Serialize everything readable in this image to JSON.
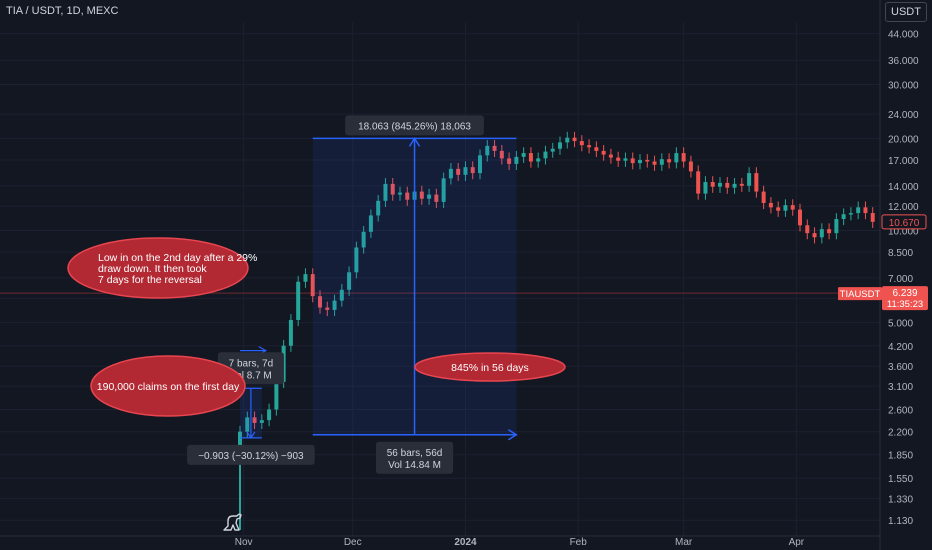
{
  "header": {
    "title": "TIA / USDT, 1D, MEXC",
    "currency_button": "USDT"
  },
  "colors": {
    "background": "#131722",
    "up": "#26a69a",
    "down": "#ef5350",
    "measure": "#2962ff",
    "annotation_fill": "#b22833",
    "annotation_border": "#e8464f",
    "price_line": "#6e2a30"
  },
  "chart_data": {
    "type": "candlestick",
    "y_scale": "log",
    "y_ticks": [
      "44.000",
      "36.000",
      "30.000",
      "24.000",
      "20.000",
      "17.000",
      "14.000",
      "12.000",
      "10.000",
      "8.500",
      "7.000",
      "6.000",
      "5.000",
      "4.200",
      "3.600",
      "3.100",
      "2.600",
      "2.200",
      "1.850",
      "1.550",
      "1.330",
      "1.130"
    ],
    "x_ticks": [
      {
        "label": "Nov",
        "bold": false
      },
      {
        "label": "Dec",
        "bold": false
      },
      {
        "label": "2024",
        "bold": true
      },
      {
        "label": "Feb",
        "bold": false
      },
      {
        "label": "Mar",
        "bold": false
      },
      {
        "label": "Apr",
        "bold": false
      }
    ],
    "x_range": [
      "2023-10-31",
      "2024-04-24"
    ],
    "close_series": [
      [
        "2023-10-31",
        2.2
      ],
      [
        "2023-11-02",
        2.45
      ],
      [
        "2023-11-04",
        2.35
      ],
      [
        "2023-11-06",
        2.4
      ],
      [
        "2023-11-08",
        2.6
      ],
      [
        "2023-11-10",
        3.2
      ],
      [
        "2023-11-12",
        4.2
      ],
      [
        "2023-11-14",
        5.1
      ],
      [
        "2023-11-16",
        6.8
      ],
      [
        "2023-11-18",
        7.2
      ],
      [
        "2023-11-20",
        6.1
      ],
      [
        "2023-11-22",
        5.6
      ],
      [
        "2023-11-24",
        5.5
      ],
      [
        "2023-11-26",
        5.9
      ],
      [
        "2023-11-28",
        6.4
      ],
      [
        "2023-11-30",
        7.3
      ],
      [
        "2023-12-02",
        8.8
      ],
      [
        "2023-12-04",
        9.9
      ],
      [
        "2023-12-06",
        11.2
      ],
      [
        "2023-12-08",
        12.5
      ],
      [
        "2023-12-10",
        14.2
      ],
      [
        "2023-12-12",
        13.1
      ],
      [
        "2023-12-14",
        13.3
      ],
      [
        "2023-12-16",
        12.6
      ],
      [
        "2023-12-18",
        13.4
      ],
      [
        "2023-12-20",
        12.7
      ],
      [
        "2023-12-22",
        13.1
      ],
      [
        "2023-12-24",
        12.4
      ],
      [
        "2023-12-26",
        14.8
      ],
      [
        "2023-12-28",
        15.9
      ],
      [
        "2023-12-30",
        15.2
      ],
      [
        "2024-01-01",
        16.1
      ],
      [
        "2024-01-03",
        15.4
      ],
      [
        "2024-01-05",
        17.6
      ],
      [
        "2024-01-07",
        18.9
      ],
      [
        "2024-01-09",
        18.2
      ],
      [
        "2024-01-11",
        17.2
      ],
      [
        "2024-01-13",
        16.5
      ],
      [
        "2024-01-15",
        17.4
      ],
      [
        "2024-01-17",
        17.9
      ],
      [
        "2024-01-19",
        16.8
      ],
      [
        "2024-01-21",
        17.2
      ],
      [
        "2024-01-23",
        18.1
      ],
      [
        "2024-01-25",
        18.5
      ],
      [
        "2024-01-27",
        19.4
      ],
      [
        "2024-01-29",
        20.1
      ],
      [
        "2024-01-31",
        19.6
      ],
      [
        "2024-02-02",
        19.0
      ],
      [
        "2024-02-04",
        18.7
      ],
      [
        "2024-02-06",
        18.2
      ],
      [
        "2024-02-08",
        17.7
      ],
      [
        "2024-02-10",
        17.3
      ],
      [
        "2024-02-12",
        16.9
      ],
      [
        "2024-02-14",
        17.2
      ],
      [
        "2024-02-16",
        16.6
      ],
      [
        "2024-02-18",
        17.0
      ],
      [
        "2024-02-20",
        16.8
      ],
      [
        "2024-02-22",
        16.4
      ],
      [
        "2024-02-24",
        17.1
      ],
      [
        "2024-02-26",
        16.7
      ],
      [
        "2024-02-28",
        17.9
      ],
      [
        "2024-03-01",
        16.8
      ],
      [
        "2024-03-03",
        15.6
      ],
      [
        "2024-03-05",
        13.2
      ],
      [
        "2024-03-07",
        14.4
      ],
      [
        "2024-03-09",
        13.9
      ],
      [
        "2024-03-11",
        14.3
      ],
      [
        "2024-03-13",
        13.8
      ],
      [
        "2024-03-15",
        14.2
      ],
      [
        "2024-03-17",
        14.0
      ],
      [
        "2024-03-19",
        15.4
      ],
      [
        "2024-03-21",
        13.4
      ],
      [
        "2024-03-23",
        12.3
      ],
      [
        "2024-03-25",
        11.9
      ],
      [
        "2024-03-27",
        11.6
      ],
      [
        "2024-03-29",
        12.1
      ],
      [
        "2024-03-31",
        11.7
      ],
      [
        "2024-04-02",
        10.4
      ],
      [
        "2024-04-04",
        9.8
      ],
      [
        "2024-04-06",
        9.5
      ],
      [
        "2024-04-08",
        10.1
      ],
      [
        "2024-04-10",
        9.8
      ],
      [
        "2024-04-12",
        10.9
      ],
      [
        "2024-04-14",
        11.3
      ],
      [
        "2024-04-16",
        11.4
      ],
      [
        "2024-04-18",
        11.9
      ],
      [
        "2024-04-20",
        11.4
      ],
      [
        "2024-04-22",
        10.67
      ]
    ],
    "price_labels": [
      {
        "value": 10.67,
        "text": "10.670",
        "style": "outline"
      },
      {
        "value": 6.239,
        "text": "6.239",
        "sub": "11:35:23",
        "symbol": "TIAUSDT",
        "style": "filled"
      }
    ],
    "annotations": [
      {
        "name": "low-annotation",
        "text": [
          "Low in on the 2nd day after a 29%",
          "draw down. It then took",
          "7 days for the reversal"
        ]
      },
      {
        "name": "claims-annotation",
        "text": [
          "190,000 claims on the first day"
        ]
      },
      {
        "name": "gain-annotation",
        "text": [
          "845% in 56 days"
        ]
      }
    ],
    "measure_large": {
      "label": "18.063 (845.26%) 18,063",
      "bars": "56 bars, 56d",
      "vol": "Vol 14.84 M",
      "from": "2023-11-20",
      "to": "2024-01-15"
    },
    "measure_small": {
      "label": "−0.903 (−30.12%) −903",
      "bars": "7 bars, 7d",
      "vol": "Vol 8.7 M",
      "from": "2023-10-31",
      "to": "2023-11-06"
    }
  }
}
